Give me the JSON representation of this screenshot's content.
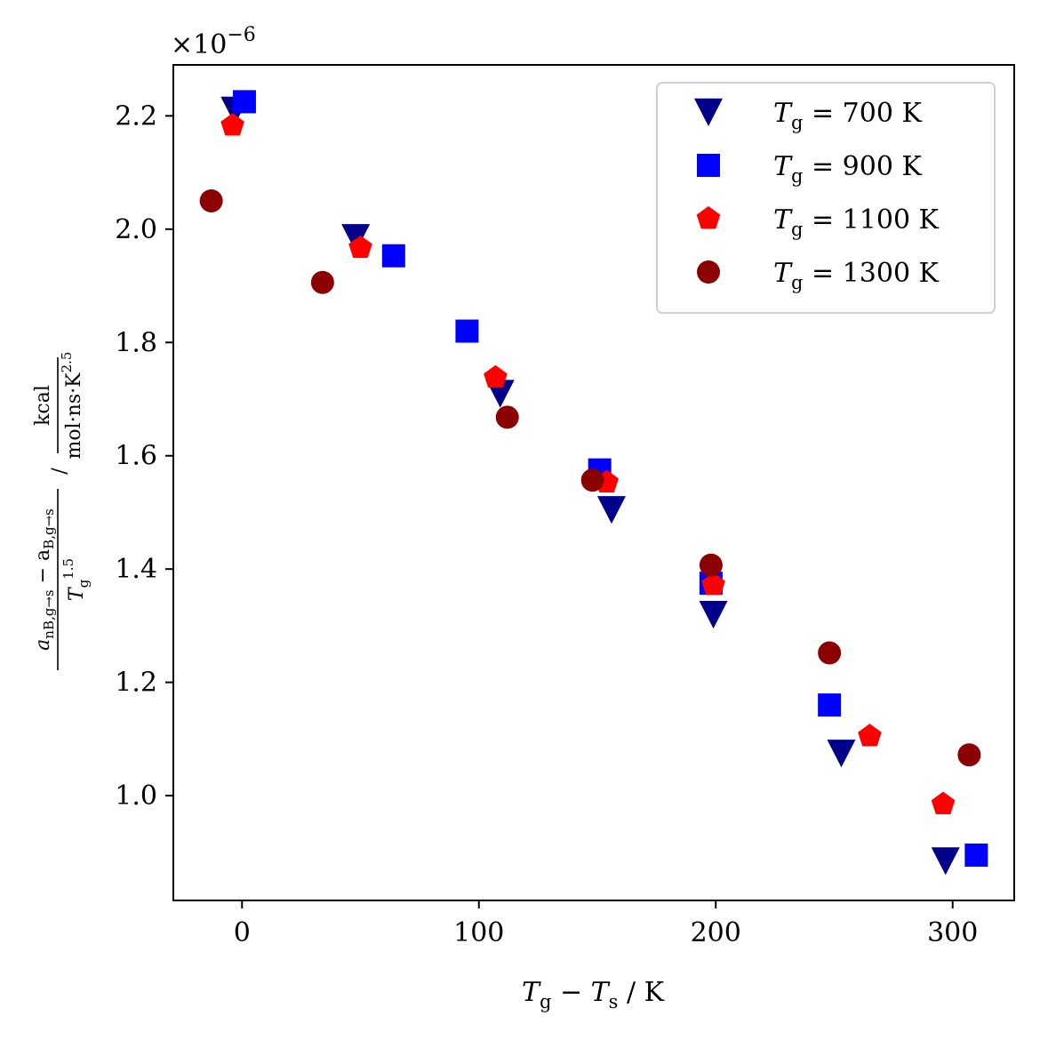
{
  "chart_data": {
    "type": "scatter",
    "title": "",
    "xlabel": "T_g − T_s / K",
    "ylabel": "(a_nB,g→s − a_B,g→s) / T_g^1.5  /  kcal / (mol·ns·K^2.5)",
    "ylabel_parts": {
      "num": "a",
      "num_sub": "nB,g→s",
      "minus": " − a",
      "num_sub2": "B,g→s",
      "den": "T",
      "den_sub": "g",
      "den_sup": "1.5",
      "slash": "/",
      "unit_num": "kcal",
      "unit_den": "mol·ns·K",
      "unit_den_sup": "2.5"
    },
    "y_multiplier": "×10",
    "y_multiplier_exp": "−6",
    "xlim": [
      -29,
      326
    ],
    "ylim": [
      0.815,
      2.29
    ],
    "xticks": [
      0,
      100,
      200,
      300
    ],
    "xtick_labels": [
      "0",
      "100",
      "200",
      "300"
    ],
    "yticks": [
      1.0,
      1.2,
      1.4,
      1.6,
      1.8,
      2.0,
      2.2
    ],
    "ytick_labels": [
      "1.0",
      "1.2",
      "1.4",
      "1.6",
      "1.8",
      "2.0",
      "2.2"
    ],
    "grid": false,
    "legend_position": "top-right",
    "series": [
      {
        "name": "T_g = 700 K",
        "label_symbol": "T",
        "label_sub": "g",
        "label_rest": " = 700 K",
        "marker": "triangle-down",
        "color": "#00008b",
        "x": [
          -3,
          48,
          109,
          156,
          199,
          253,
          297
        ],
        "y": [
          2.21,
          1.985,
          1.71,
          1.505,
          1.32,
          1.075,
          0.885
        ]
      },
      {
        "name": "T_g = 900 K",
        "label_symbol": "T",
        "label_sub": "g",
        "label_rest": " = 900 K",
        "marker": "square",
        "color": "#0000ff",
        "x": [
          1,
          64,
          95,
          151,
          198,
          248,
          310
        ],
        "y": [
          2.225,
          1.953,
          1.82,
          1.575,
          1.375,
          1.16,
          0.895
        ]
      },
      {
        "name": "T_g = 1100 K",
        "label_symbol": "T",
        "label_sub": "g",
        "label_rest": " = 1100 K",
        "marker": "pentagon",
        "color": "#ff0000",
        "x": [
          -4,
          50,
          107,
          154,
          199,
          265,
          296
        ],
        "y": [
          2.183,
          1.967,
          1.738,
          1.553,
          1.372,
          1.105,
          0.985
        ]
      },
      {
        "name": "T_g = 1300 K",
        "label_symbol": "T",
        "label_sub": "g",
        "label_rest": " = 1300 K",
        "marker": "circle",
        "color": "#8b0000",
        "x": [
          -13,
          34,
          112,
          148,
          198,
          248,
          307
        ],
        "y": [
          2.05,
          1.906,
          1.668,
          1.557,
          1.407,
          1.252,
          1.072
        ]
      }
    ]
  }
}
